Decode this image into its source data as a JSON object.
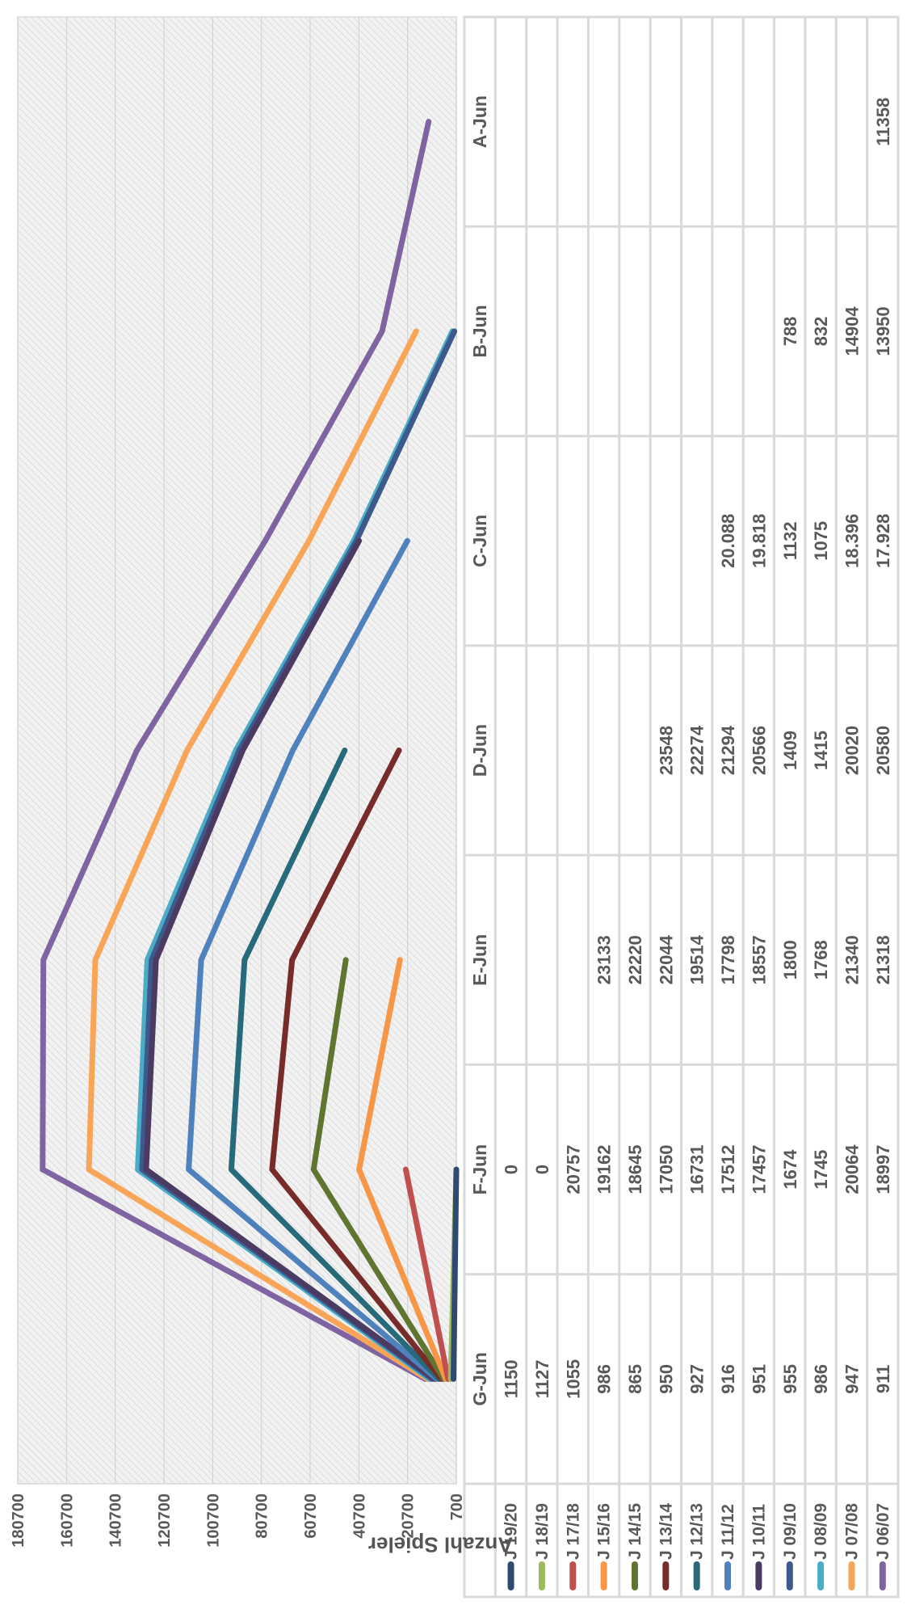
{
  "chart_data": {
    "type": "line",
    "title": "",
    "xlabel": "",
    "ylabel": "Anzahl Spieler",
    "ylim": [
      700,
      180700
    ],
    "yticks": [
      "180700",
      "160700",
      "140700",
      "120700",
      "100700",
      "80700",
      "60700",
      "40700",
      "20700",
      "700"
    ],
    "categories": [
      "G-Jun",
      "F-Jun",
      "E-Jun",
      "D-Jun",
      "C-Jun",
      "B-Jun",
      "A-Jun"
    ],
    "stacked": true,
    "grid": true,
    "legend": "data-table",
    "series": [
      {
        "name": "J 19/20",
        "color": "#2E4A73",
        "labels": [
          "1150",
          "0",
          "",
          "",
          "",
          "",
          ""
        ],
        "values": [
          1150,
          0,
          null,
          null,
          null,
          null,
          null
        ]
      },
      {
        "name": "J 18/19",
        "color": "#9BBB59",
        "labels": [
          "1127",
          "0",
          "",
          "",
          "",
          "",
          ""
        ],
        "values": [
          1127,
          0,
          null,
          null,
          null,
          null,
          null
        ]
      },
      {
        "name": "J 17/18",
        "color": "#C0504D",
        "labels": [
          "1055",
          "20757",
          "",
          "",
          "",
          "",
          ""
        ],
        "values": [
          1055,
          20757,
          null,
          null,
          null,
          null,
          null
        ]
      },
      {
        "name": "J 15/16",
        "color": "#F79646",
        "labels": [
          "986",
          "19162",
          "23133",
          "",
          "",
          "",
          ""
        ],
        "values": [
          986,
          19162,
          23133,
          null,
          null,
          null,
          null
        ]
      },
      {
        "name": "J 14/15",
        "color": "#5F7530",
        "labels": [
          "865",
          "18645",
          "22220",
          "",
          "",
          "",
          ""
        ],
        "values": [
          865,
          18645,
          22220,
          null,
          null,
          null,
          null
        ]
      },
      {
        "name": "J 13/14",
        "color": "#772C2A",
        "labels": [
          "950",
          "17050",
          "22044",
          "23548",
          "",
          "",
          ""
        ],
        "values": [
          950,
          17050,
          22044,
          23548,
          null,
          null,
          null
        ]
      },
      {
        "name": "J 12/13",
        "color": "#276A7C",
        "labels": [
          "927",
          "16731",
          "19514",
          "22274",
          "",
          "",
          ""
        ],
        "values": [
          927,
          16731,
          19514,
          22274,
          null,
          null,
          null
        ]
      },
      {
        "name": "J 11/12",
        "color": "#4F81BD",
        "labels": [
          "916",
          "17512",
          "17798",
          "21294",
          "20.088",
          "",
          ""
        ],
        "values": [
          916,
          17512,
          17798,
          21294,
          20088,
          null,
          null
        ]
      },
      {
        "name": "J 10/11",
        "color": "#4B3A62",
        "labels": [
          "951",
          "17457",
          "18557",
          "20566",
          "19.818",
          "",
          ""
        ],
        "values": [
          951,
          17457,
          18557,
          20566,
          19818,
          null,
          null
        ]
      },
      {
        "name": "J 09/10",
        "color": "#3C5A8C",
        "labels": [
          "955",
          "1674",
          "1800",
          "1409",
          "1132",
          "788",
          ""
        ],
        "values": [
          955,
          1674,
          1800,
          1409,
          1132,
          788,
          null
        ]
      },
      {
        "name": "J 08/09",
        "color": "#4BACC6",
        "labels": [
          "986",
          "1745",
          "1768",
          "1415",
          "1075",
          "832",
          ""
        ],
        "values": [
          986,
          1745,
          1768,
          1415,
          1075,
          832,
          null
        ]
      },
      {
        "name": "J 07/08",
        "color": "#F9A557",
        "labels": [
          "947",
          "20064",
          "21340",
          "20020",
          "18.396",
          "14904",
          ""
        ],
        "values": [
          947,
          20064,
          21340,
          20020,
          18396,
          14904,
          null
        ]
      },
      {
        "name": "J 06/07",
        "color": "#8064A2",
        "labels": [
          "911",
          "18997",
          "21318",
          "20580",
          "17.928",
          "13950",
          "11358"
        ],
        "values": [
          911,
          18997,
          21318,
          20580,
          17928,
          13950,
          11358
        ]
      }
    ]
  }
}
